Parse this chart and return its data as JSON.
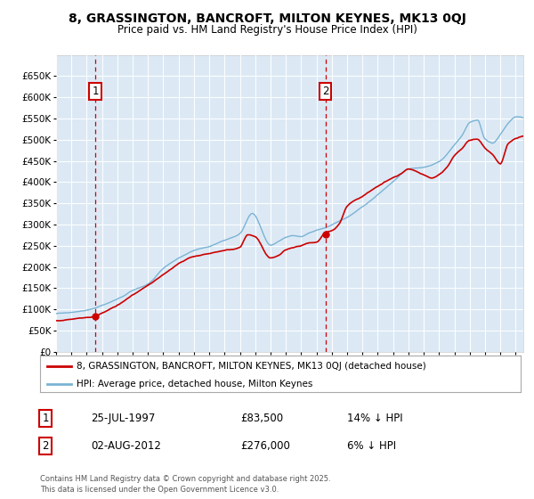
{
  "title": "8, GRASSINGTON, BANCROFT, MILTON KEYNES, MK13 0QJ",
  "subtitle": "Price paid vs. HM Land Registry's House Price Index (HPI)",
  "background_color": "#ffffff",
  "plot_bg_color": "#dce9f5",
  "grid_color": "#ffffff",
  "hpi_color": "#7ab3d4",
  "price_color": "#cc0000",
  "ylim": [
    0,
    700000
  ],
  "yticks": [
    0,
    50000,
    100000,
    150000,
    200000,
    250000,
    300000,
    350000,
    400000,
    450000,
    500000,
    550000,
    600000,
    650000
  ],
  "legend_label_price": "8, GRASSINGTON, BANCROFT, MILTON KEYNES, MK13 0QJ (detached house)",
  "legend_label_hpi": "HPI: Average price, detached house, Milton Keynes",
  "annotation1_date": "25-JUL-1997",
  "annotation1_price": "£83,500",
  "annotation1_note": "14% ↓ HPI",
  "annotation2_date": "02-AUG-2012",
  "annotation2_price": "£276,000",
  "annotation2_note": "6% ↓ HPI",
  "copyright_text": "Contains HM Land Registry data © Crown copyright and database right 2025.\nThis data is licensed under the Open Government Licence v3.0.",
  "sale1_x": 1997.56,
  "sale1_y": 83500,
  "sale2_x": 2012.59,
  "sale2_y": 276000,
  "xmin": 1995.0,
  "xmax": 2025.5
}
